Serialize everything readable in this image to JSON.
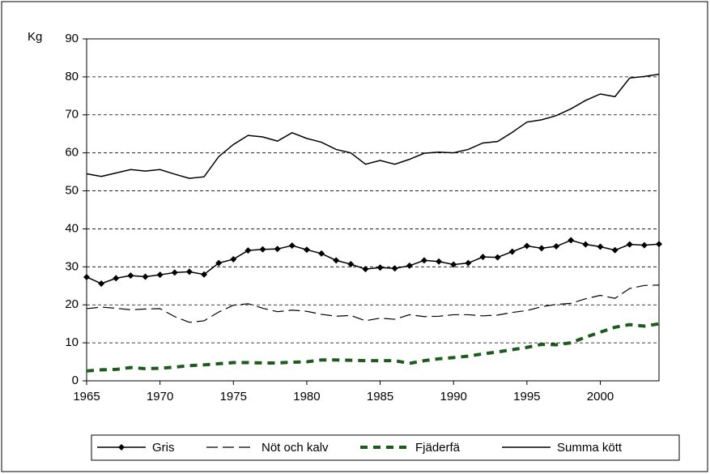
{
  "chart_data": {
    "type": "line",
    "y_label": "Kg",
    "x": [
      1965,
      1966,
      1967,
      1968,
      1969,
      1970,
      1971,
      1972,
      1973,
      1974,
      1975,
      1976,
      1977,
      1978,
      1979,
      1980,
      1981,
      1982,
      1983,
      1984,
      1985,
      1986,
      1987,
      1988,
      1989,
      1990,
      1991,
      1992,
      1993,
      1994,
      1995,
      1996,
      1997,
      1998,
      1999,
      2000,
      2001,
      2002,
      2003,
      2004
    ],
    "xlim": [
      1965,
      2004
    ],
    "xticks": [
      1965,
      1970,
      1975,
      1980,
      1985,
      1990,
      1995,
      2000
    ],
    "ylim": [
      0,
      90
    ],
    "yticks": [
      0,
      10,
      20,
      30,
      40,
      50,
      60,
      70,
      80,
      90
    ],
    "grid": true,
    "legend": "bottom",
    "series": [
      {
        "name": "Gris",
        "color": "#000000",
        "dash": "solid",
        "marker": "diamond",
        "width": 1.5,
        "values": [
          27.3,
          25.6,
          27,
          27.7,
          27.4,
          27.9,
          28.5,
          28.7,
          28,
          31,
          32,
          34.3,
          34.6,
          34.7,
          35.6,
          34.5,
          33.5,
          31.7,
          30.7,
          29.4,
          29.8,
          29.6,
          30.3,
          31.7,
          31.4,
          30.6,
          31,
          32.6,
          32.5,
          34,
          35.5,
          34.9,
          35.4,
          37,
          35.9,
          35.3,
          34.4,
          35.9,
          35.7,
          36
        ]
      },
      {
        "name": "Nöt och kalv",
        "color": "#000000",
        "dash": "dashed",
        "marker": "none",
        "width": 1.2,
        "values": [
          19,
          19.4,
          19.1,
          18.7,
          18.9,
          19,
          16.9,
          15.4,
          15.8,
          18.1,
          19.9,
          20.3,
          19.1,
          18.2,
          18.6,
          18.3,
          17.5,
          17,
          17.2,
          15.8,
          16.5,
          16.2,
          17.4,
          16.9,
          17,
          17.4,
          17.4,
          17.1,
          17.3,
          18,
          18.5,
          19.5,
          20.1,
          20.4,
          21.6,
          22.5,
          21.7,
          24.3,
          25.1,
          25.2
        ]
      },
      {
        "name": "Fjäderfä",
        "color": "#1e5a1e",
        "dash": "thick-dashed",
        "marker": "none",
        "width": 4,
        "values": [
          2.6,
          2.9,
          3,
          3.5,
          3.2,
          3.3,
          3.6,
          4,
          4.2,
          4.5,
          4.8,
          4.8,
          4.7,
          4.7,
          4.9,
          5,
          5.5,
          5.5,
          5.4,
          5.3,
          5.3,
          5.3,
          4.6,
          5.3,
          5.8,
          6.1,
          6.5,
          7.1,
          7.6,
          8.2,
          8.8,
          9.6,
          9.5,
          10,
          11.5,
          12.8,
          14.1,
          14.8,
          14.4,
          15
        ]
      },
      {
        "name": "Summa kött",
        "color": "#000000",
        "dash": "solid",
        "marker": "none",
        "width": 1.5,
        "values": [
          54.5,
          53.8,
          54.7,
          55.6,
          55.2,
          55.6,
          54.4,
          53.3,
          53.7,
          59,
          62.2,
          64.6,
          64.2,
          63.1,
          65.3,
          63.8,
          62.8,
          60.9,
          60,
          57,
          58,
          57,
          58.3,
          59.9,
          60.2,
          60,
          60.9,
          62.6,
          63,
          65.4,
          68.1,
          68.7,
          69.8,
          71.6,
          73.8,
          75.5,
          74.8,
          79.7,
          80.1,
          80.7
        ]
      }
    ]
  }
}
